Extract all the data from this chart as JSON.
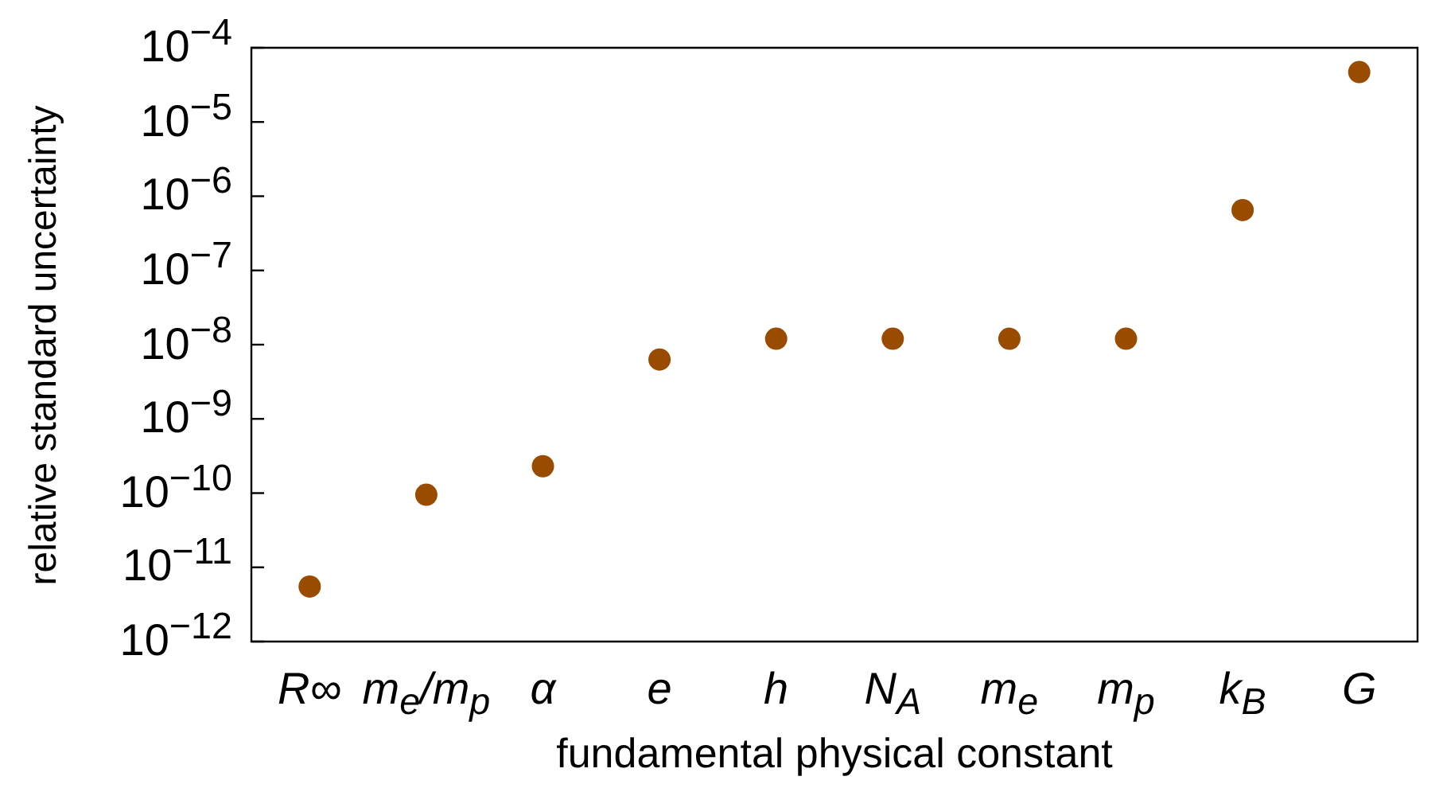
{
  "chart_data": {
    "type": "scatter",
    "xlabel": "fundamental physical constant",
    "ylabel": "relative standard uncertainty",
    "categories": [
      "R∞",
      "m$_{e}$/m$_{p}$",
      "α",
      "e",
      "h",
      "N$_{A}$",
      "m$_{e}$",
      "m$_{p}$",
      "k$_{B}$",
      "G"
    ],
    "values": [
      5.5e-12,
      9.5e-11,
      2.3e-10,
      6.3e-09,
      1.2e-08,
      1.2e-08,
      1.2e-08,
      1.2e-08,
      6.5e-07,
      4.7e-05
    ],
    "color": "#994c00",
    "marker": "circle",
    "log": "y",
    "grid": false,
    "legend": false,
    "ylim": [
      1e-12,
      0.0001
    ],
    "yticks": [
      {
        "value": 1e-12,
        "label": "10$^{−12}$"
      },
      {
        "value": 1e-11,
        "label": "10$^{−11}$"
      },
      {
        "value": 1e-10,
        "label": "10$^{−10}$"
      },
      {
        "value": 1e-09,
        "label": "10$^{−9}$"
      },
      {
        "value": 1e-08,
        "label": "10$^{−8}$"
      },
      {
        "value": 1e-07,
        "label": "10$^{−7}$"
      },
      {
        "value": 1e-06,
        "label": "10$^{−6}$"
      },
      {
        "value": 1e-05,
        "label": "10$^{−5}$"
      },
      {
        "value": 0.0001,
        "label": "10$^{−4}$"
      }
    ]
  }
}
